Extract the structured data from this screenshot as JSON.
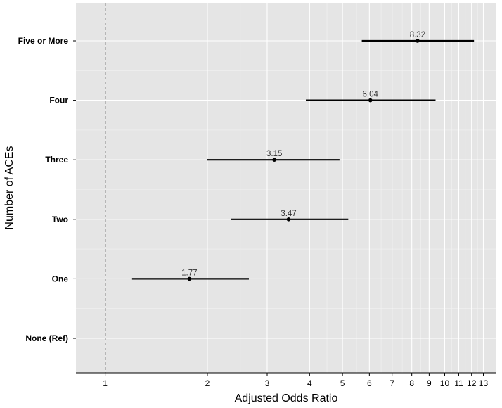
{
  "chart_data": {
    "type": "forest",
    "xlabel": "Adjusted Odds Ratio",
    "ylabel": "Number of ACEs",
    "x_scale": "log",
    "xlim": [
      0.82,
      14.2
    ],
    "x_ticks": [
      1,
      2,
      3,
      4,
      5,
      6,
      7,
      8,
      9,
      10,
      11,
      12,
      13
    ],
    "reference_line": 1,
    "grid": true,
    "categories": [
      "Five or More",
      "Four",
      "Three",
      "Two",
      "One",
      "None (Ref)"
    ],
    "points": [
      {
        "category": "Five or More",
        "estimate": 8.32,
        "lower": 5.7,
        "upper": 12.2,
        "label": "8.32"
      },
      {
        "category": "Four",
        "estimate": 6.04,
        "lower": 3.9,
        "upper": 9.4,
        "label": "6.04"
      },
      {
        "category": "Three",
        "estimate": 3.15,
        "lower": 2.0,
        "upper": 4.9,
        "label": "3.15"
      },
      {
        "category": "Two",
        "estimate": 3.47,
        "lower": 2.35,
        "upper": 5.2,
        "label": "3.47"
      },
      {
        "category": "One",
        "estimate": 1.77,
        "lower": 1.2,
        "upper": 2.65,
        "label": "1.77"
      }
    ]
  }
}
